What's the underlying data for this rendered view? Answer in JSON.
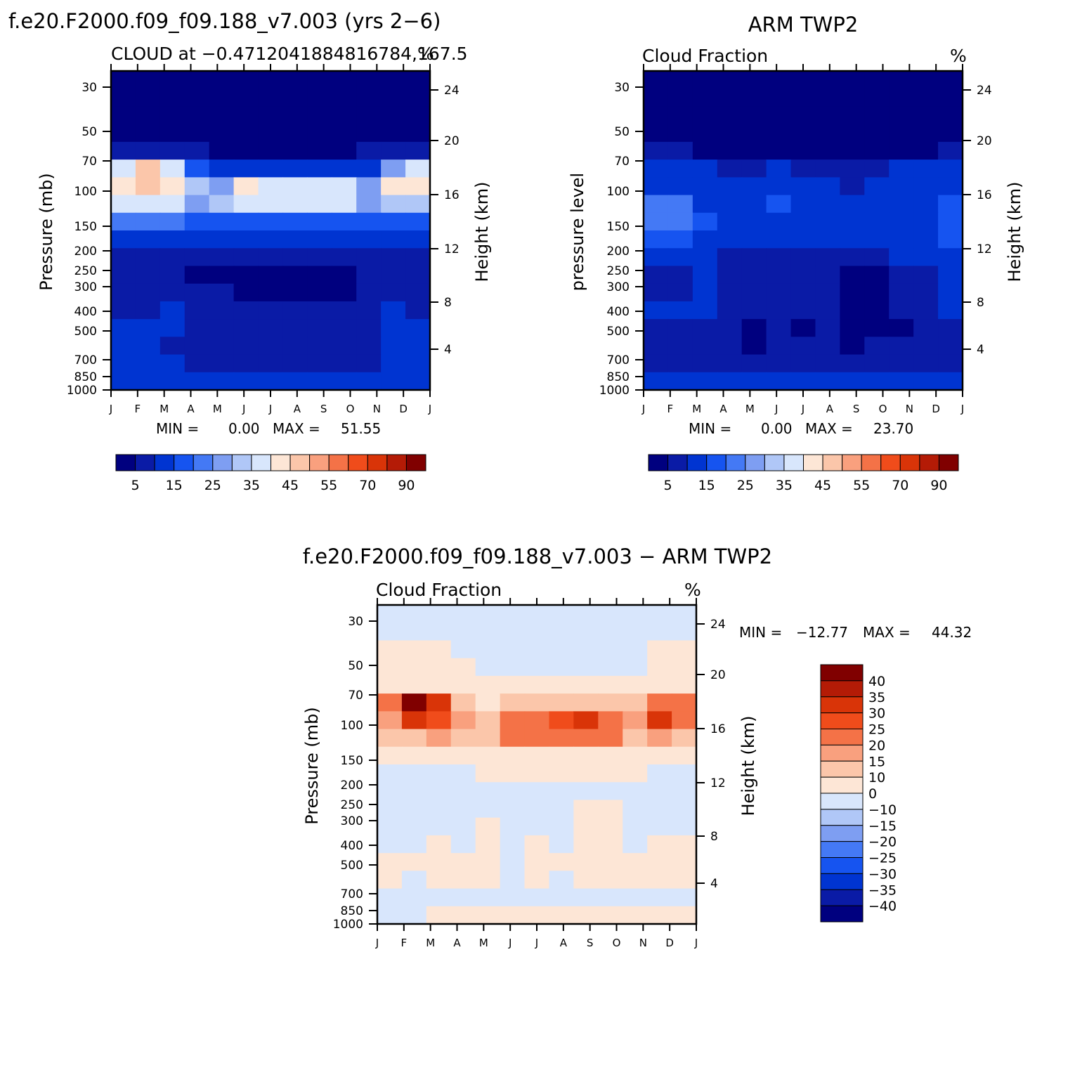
{
  "chart_data": [
    {
      "type": "heatmap",
      "panel": "model",
      "title": "f.e20.F2000.f09_f09.188_v7.003 (yrs 2−6)",
      "subtitle_left": "CLOUD at −0.4712041884816784,167.5",
      "subtitle_right": "%",
      "ylabel": "Pressure (mb)",
      "ylabel_right": "Height (km)",
      "months": [
        "J",
        "F",
        "M",
        "A",
        "M",
        "J",
        "J",
        "A",
        "S",
        "O",
        "N",
        "D",
        "J"
      ],
      "pressure_ticks": [
        "30",
        "50",
        "70",
        "100",
        "150",
        "200",
        "250",
        "300",
        "400",
        "500",
        "700",
        "850",
        "1000"
      ],
      "height_ticks": [
        "24",
        "20",
        "16",
        "12",
        "8",
        "4"
      ],
      "stats": {
        "min_label": "MIN =",
        "min": "0.00",
        "max_label": "MAX =",
        "max": "51.55"
      },
      "legend": {
        "labels": [
          "5",
          "15",
          "25",
          "35",
          "45",
          "55",
          "70",
          "90"
        ]
      },
      "rows": [
        [
          0,
          0,
          0,
          0,
          0,
          0,
          0,
          0,
          0,
          0,
          0,
          0,
          0
        ],
        [
          0,
          0,
          0,
          0,
          0,
          0,
          0,
          0,
          0,
          0,
          0,
          0,
          0
        ],
        [
          0,
          0,
          0,
          0,
          0,
          0,
          0,
          0,
          0,
          0,
          0,
          0,
          0
        ],
        [
          0,
          0,
          0,
          0,
          0,
          0,
          0,
          0,
          0,
          0,
          0,
          0,
          0
        ],
        [
          5,
          5,
          5,
          5,
          0,
          0,
          0,
          0,
          0,
          0,
          5,
          5,
          5
        ],
        [
          35,
          48,
          35,
          15,
          10,
          10,
          10,
          10,
          10,
          10,
          10,
          25,
          35
        ],
        [
          40,
          45,
          40,
          30,
          25,
          40,
          38,
          38,
          38,
          35,
          25,
          42,
          40
        ],
        [
          35,
          35,
          35,
          28,
          30,
          38,
          38,
          38,
          38,
          35,
          25,
          30,
          30
        ],
        [
          20,
          20,
          20,
          18,
          16,
          18,
          18,
          18,
          18,
          16,
          16,
          16,
          16
        ],
        [
          12,
          12,
          12,
          12,
          11,
          10,
          10,
          10,
          10,
          10,
          12,
          10,
          12
        ],
        [
          8,
          8,
          8,
          6,
          6,
          6,
          7,
          7,
          7,
          7,
          8,
          8,
          8
        ],
        [
          7,
          7,
          6,
          3,
          3,
          3,
          3,
          3,
          3,
          3,
          6,
          6,
          7
        ],
        [
          8,
          8,
          8,
          6,
          5,
          4,
          4,
          4,
          4,
          4,
          6,
          8,
          8
        ],
        [
          9,
          9,
          14,
          8,
          6,
          6,
          6,
          6,
          6,
          6,
          8,
          14,
          9
        ],
        [
          10,
          10,
          10,
          8,
          6,
          6,
          6,
          6,
          6,
          6,
          8,
          10,
          10
        ],
        [
          10,
          10,
          8,
          6,
          6,
          6,
          6,
          6,
          6,
          6,
          6,
          10,
          10
        ],
        [
          12,
          12,
          10,
          8,
          7,
          7,
          7,
          7,
          7,
          7,
          8,
          12,
          12
        ],
        [
          14,
          14,
          12,
          12,
          12,
          12,
          12,
          12,
          12,
          12,
          12,
          14,
          14
        ]
      ]
    },
    {
      "type": "heatmap",
      "panel": "obs",
      "title": "ARM TWP2",
      "subtitle_left": "Cloud Fraction",
      "subtitle_right": "%",
      "ylabel": "pressure level",
      "ylabel_right": "Height (km)",
      "months": [
        "J",
        "F",
        "M",
        "A",
        "M",
        "J",
        "J",
        "A",
        "S",
        "O",
        "N",
        "D",
        "J"
      ],
      "pressure_ticks": [
        "30",
        "50",
        "70",
        "100",
        "150",
        "200",
        "250",
        "300",
        "400",
        "500",
        "700",
        "850",
        "1000"
      ],
      "height_ticks": [
        "24",
        "20",
        "16",
        "12",
        "8",
        "4"
      ],
      "stats": {
        "min_label": "MIN =",
        "min": "0.00",
        "max_label": "MAX =",
        "max": "23.70"
      },
      "legend": {
        "labels": [
          "5",
          "15",
          "25",
          "35",
          "45",
          "55",
          "70",
          "90"
        ]
      },
      "rows": [
        [
          0,
          0,
          0,
          0,
          0,
          0,
          0,
          0,
          0,
          0,
          0,
          0,
          0
        ],
        [
          0,
          0,
          0,
          0,
          0,
          0,
          0,
          0,
          0,
          0,
          0,
          0,
          0
        ],
        [
          0,
          0,
          0,
          0,
          0,
          0,
          0,
          0,
          0,
          0,
          0,
          0,
          0
        ],
        [
          0,
          0,
          0,
          0,
          0,
          0,
          0,
          0,
          0,
          0,
          0,
          0,
          0
        ],
        [
          8,
          5,
          4,
          0,
          0,
          0,
          0,
          0,
          0,
          0,
          0,
          4,
          8
        ],
        [
          12,
          12,
          11,
          8,
          8,
          10,
          8,
          8,
          6,
          6,
          10,
          12,
          14
        ],
        [
          14,
          13,
          11,
          10,
          10,
          13,
          14,
          12,
          8,
          10,
          12,
          12,
          14
        ],
        [
          22,
          21,
          14,
          10,
          11,
          16,
          14,
          11,
          10,
          10,
          11,
          13,
          18
        ],
        [
          20,
          21,
          15,
          10,
          11,
          13,
          13,
          11,
          10,
          10,
          11,
          13,
          18
        ],
        [
          16,
          17,
          12,
          10,
          10,
          11,
          11,
          10,
          10,
          10,
          11,
          13,
          16
        ],
        [
          12,
          12,
          11,
          8,
          9,
          8,
          8,
          8,
          8,
          8,
          10,
          12,
          14
        ],
        [
          9,
          9,
          10,
          5,
          5,
          5,
          5,
          5,
          4,
          3,
          5,
          9,
          10
        ],
        [
          9,
          8,
          10,
          7,
          5,
          5,
          5,
          5,
          3,
          2,
          5,
          9,
          10
        ],
        [
          10,
          10,
          10,
          8,
          6,
          6,
          6,
          6,
          4,
          3,
          6,
          9,
          10
        ],
        [
          6,
          7,
          7,
          5,
          4,
          6,
          4,
          5,
          3,
          2,
          4,
          7,
          7
        ],
        [
          7,
          7,
          6,
          5,
          4,
          6,
          5,
          5,
          4,
          5,
          5,
          6,
          7
        ],
        [
          8,
          8,
          8,
          7,
          6,
          6,
          6,
          6,
          6,
          6,
          7,
          8,
          8
        ],
        [
          10,
          10,
          10,
          10,
          10,
          10,
          10,
          10,
          10,
          10,
          10,
          10,
          10
        ]
      ]
    },
    {
      "type": "heatmap",
      "panel": "diff",
      "title": "f.e20.F2000.f09_f09.188_v7.003 − ARM TWP2",
      "subtitle_left": "Cloud Fraction",
      "subtitle_right": "%",
      "ylabel": "Pressure (mb)",
      "ylabel_right": "Height (km)",
      "months": [
        "J",
        "F",
        "M",
        "A",
        "M",
        "J",
        "J",
        "A",
        "S",
        "O",
        "N",
        "D",
        "J"
      ],
      "pressure_ticks": [
        "30",
        "50",
        "70",
        "100",
        "150",
        "200",
        "250",
        "300",
        "400",
        "500",
        "700",
        "850",
        "1000"
      ],
      "height_ticks": [
        "24",
        "20",
        "16",
        "12",
        "8",
        "4"
      ],
      "stats": {
        "min_label": "MIN =",
        "min": "−12.77",
        "max_label": "MAX =",
        "max": "44.32"
      },
      "legend": {
        "labels": [
          "40",
          "35",
          "30",
          "25",
          "20",
          "15",
          "10",
          "0",
          "−10",
          "−15",
          "−20",
          "−25",
          "−30",
          "−35",
          "−40"
        ]
      },
      "rows": [
        [
          -2,
          -2,
          -2,
          -2,
          -2,
          -2,
          -2,
          -2,
          -2,
          -2,
          -2,
          -2,
          -2
        ],
        [
          -2,
          -2,
          -2,
          -2,
          -2,
          -2,
          -2,
          -2,
          -2,
          -2,
          -2,
          -2,
          -2
        ],
        [
          2,
          2,
          2,
          -2,
          -2,
          -2,
          -2,
          -2,
          -2,
          -2,
          -2,
          2,
          2
        ],
        [
          3,
          3,
          3,
          2,
          -2,
          -2,
          -2,
          -2,
          -2,
          -2,
          -2,
          3,
          3
        ],
        [
          8,
          6,
          5,
          3,
          3,
          3,
          3,
          3,
          3,
          3,
          3,
          5,
          8
        ],
        [
          20,
          40,
          30,
          10,
          6,
          10,
          12,
          12,
          12,
          12,
          10,
          20,
          20
        ],
        [
          18,
          30,
          28,
          18,
          10,
          24,
          24,
          25,
          33,
          22,
          15,
          30,
          22
        ],
        [
          12,
          14,
          18,
          10,
          10,
          22,
          24,
          24,
          24,
          22,
          12,
          15,
          12
        ],
        [
          5,
          5,
          5,
          4,
          4,
          6,
          8,
          8,
          8,
          8,
          4,
          5,
          4
        ],
        [
          -2,
          -2,
          -2,
          -2,
          4,
          4,
          4,
          4,
          4,
          4,
          2,
          -2,
          -2
        ],
        [
          -3,
          -3,
          -2,
          -2,
          -2,
          -2,
          -2,
          -2,
          -2,
          -2,
          -2,
          -3,
          -2
        ],
        [
          -3,
          -4,
          -3,
          -5,
          -3,
          -2,
          -2,
          -2,
          2,
          2,
          -2,
          -2,
          -3
        ],
        [
          -2,
          -2,
          -2,
          -2,
          3,
          -2,
          -2,
          -2,
          2,
          2,
          -2,
          -2,
          -2
        ],
        [
          -2,
          -2,
          2,
          -2,
          2,
          -2,
          2,
          -2,
          2,
          2,
          -2,
          3,
          2
        ],
        [
          2,
          2,
          2,
          2,
          2,
          -2,
          2,
          2,
          2,
          2,
          2,
          2,
          2
        ],
        [
          2,
          -2,
          2,
          2,
          2,
          -2,
          2,
          -2,
          2,
          2,
          2,
          2,
          2
        ],
        [
          -2,
          -2,
          -2,
          -2,
          -2,
          -2,
          -2,
          -2,
          -2,
          -2,
          -2,
          -2,
          -2
        ],
        [
          -2,
          -2,
          2,
          2,
          2,
          2,
          2,
          2,
          2,
          2,
          2,
          2,
          2
        ]
      ]
    }
  ],
  "palettes": {
    "seq": [
      "#00007f",
      "#0a1ba6",
      "#0034d1",
      "#1654f0",
      "#4479f5",
      "#7e9ef2",
      "#b0c7f7",
      "#d8e6fc",
      "#fde6d6",
      "#fbc6aa",
      "#f9a07e",
      "#f47247",
      "#f04c1b",
      "#d93408",
      "#b41b06",
      "#800000"
    ],
    "div": [
      "#00007f",
      "#0a1ba6",
      "#0034d1",
      "#1654f0",
      "#4479f5",
      "#7e9ef2",
      "#b0c7f7",
      "#d8e6fc",
      "#fde6d6",
      "#fbc6aa",
      "#f9a07e",
      "#f47247",
      "#f04c1b",
      "#d93408",
      "#b41b06",
      "#800000"
    ]
  }
}
